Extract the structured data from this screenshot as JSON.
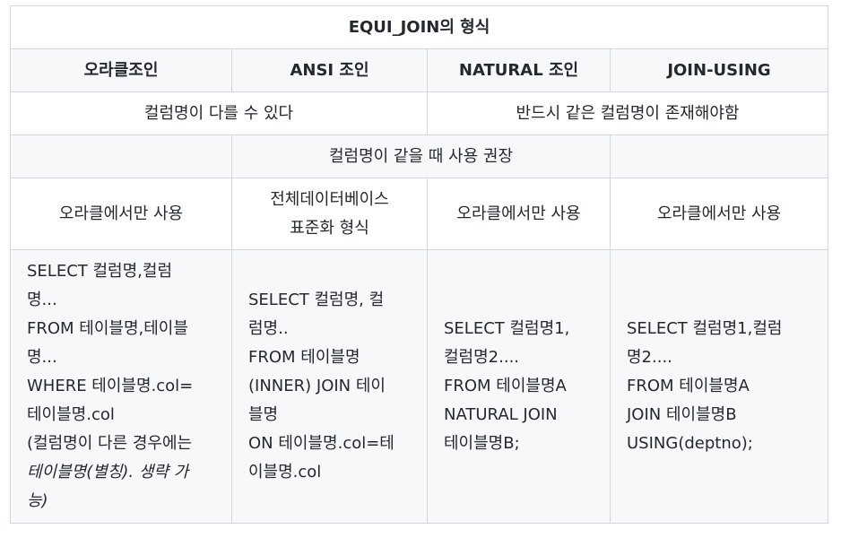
{
  "table": {
    "title": "EQUI_JOIN의 형식",
    "headers": [
      "오라클조인",
      "ANSI 조인",
      "NATURAL 조인",
      "JOIN-USING"
    ],
    "row_columns": {
      "left": "컬럼명이 다를 수 있다",
      "right": "반드시 같은 컬럼명이 존재해야함"
    },
    "row_recommend": "컬럼명이 같을 때 사용 권장",
    "row_usage": {
      "oracle": "오라클에서만 사용",
      "ansi_line1": "전체데이터베이스",
      "ansi_line2": "표준화 형식",
      "natural": "오라클에서만 사용",
      "using": "오라클에서만 사용"
    },
    "code": {
      "oracle": [
        "SELECT 컬럼명,컬럼",
        "명...",
        "FROM 테이블명,테이블",
        "명...",
        "WHERE 테이블명.col=",
        "테이블명.col",
        "(컬럼명이 다른 경우에는",
        "테이블명(별칭). 생략 가",
        "능)"
      ],
      "ansi": [
        "SELECT 컬럼명, 컬",
        "럼명..",
        "FROM 테이블명",
        "(INNER) JOIN 테이",
        "블명",
        "ON 테이블명.col=테",
        "이블명.col"
      ],
      "natural": [
        "SELECT 컬럼명1,",
        "컬럼명2....",
        "FROM 테이블명A",
        "NATURAL JOIN",
        "테이블명B;"
      ],
      "using": [
        "SELECT 컬럼명1,컬럼",
        "명2....",
        "FROM 테이블명A",
        "JOIN 테이블명B",
        "USING(deptno);"
      ]
    }
  }
}
